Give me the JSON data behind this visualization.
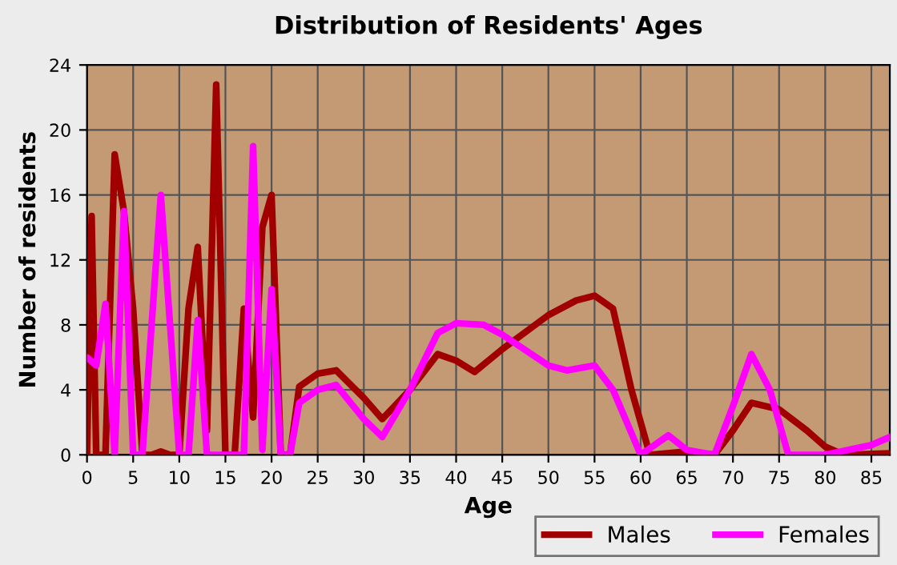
{
  "chart_data": {
    "type": "line",
    "title": "Distribution of Residents' Ages",
    "xlabel": "Age",
    "ylabel": "Number of residents",
    "xlim": [
      0,
      87
    ],
    "ylim": [
      0,
      24
    ],
    "xticks": [
      0,
      5,
      10,
      15,
      20,
      25,
      30,
      35,
      40,
      45,
      50,
      55,
      60,
      65,
      70,
      75,
      80,
      85
    ],
    "yticks": [
      0,
      4,
      8,
      12,
      16,
      20,
      24
    ],
    "grid": true,
    "legend": "bottom right",
    "line_style": "solid",
    "marker": "none",
    "series": [
      {
        "name": "Males",
        "color": "#a00000",
        "x": [
          0,
          0.5,
          1,
          2,
          3,
          4,
          5,
          6,
          7,
          8,
          9,
          10,
          11,
          12,
          13,
          14,
          15,
          16,
          17,
          18,
          19,
          20,
          21,
          22,
          23,
          25,
          27,
          30,
          32,
          35,
          38,
          40,
          42,
          45,
          50,
          53,
          55,
          57,
          59,
          61,
          65,
          68,
          70,
          72,
          75,
          78,
          80,
          82,
          87
        ],
        "values": [
          0,
          14.7,
          0,
          0,
          18.5,
          15,
          9,
          0,
          0,
          0.2,
          0,
          0,
          9,
          12.8,
          1.5,
          22.8,
          0,
          0,
          9,
          2.3,
          14,
          16,
          0,
          0,
          4.2,
          5,
          5.2,
          3.5,
          2.2,
          4,
          6.2,
          5.8,
          5.1,
          6.5,
          8.6,
          9.5,
          9.8,
          9,
          4,
          0,
          0.2,
          0,
          1.5,
          3.2,
          2.8,
          1.5,
          0.5,
          0,
          0.1
        ]
      },
      {
        "name": "Females",
        "color": "#ff00ff",
        "x": [
          0,
          1,
          2,
          3,
          4,
          5,
          6,
          7,
          8,
          9,
          10,
          11,
          12,
          13,
          14,
          15,
          16,
          17,
          18,
          19,
          20,
          21,
          22,
          23,
          25,
          27,
          30,
          32,
          35,
          38,
          40,
          43,
          45,
          50,
          52,
          55,
          57,
          60,
          63,
          65,
          68,
          70,
          72,
          74,
          76,
          80,
          85,
          87
        ],
        "values": [
          6,
          5.5,
          9.3,
          0,
          15,
          0,
          0,
          8,
          16,
          8,
          0,
          0,
          8.3,
          0,
          0,
          0,
          0,
          0,
          19,
          0.3,
          10.2,
          0,
          0,
          3.2,
          4,
          4.3,
          2.2,
          1.1,
          4,
          7.5,
          8.1,
          8,
          7.4,
          5.5,
          5.2,
          5.5,
          4,
          0,
          1.2,
          0.3,
          0,
          3,
          6.2,
          4,
          0,
          0,
          0.6,
          1.1
        ]
      }
    ]
  }
}
